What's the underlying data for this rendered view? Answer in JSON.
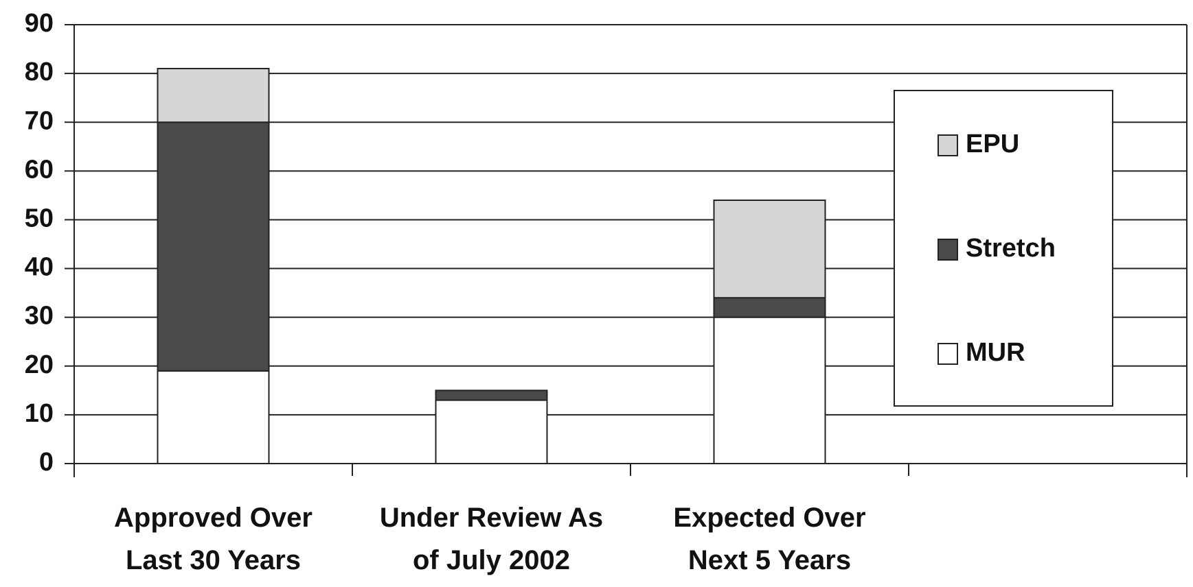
{
  "chart_data": {
    "type": "stacked_bar",
    "categories": [
      "Approved Over Last 30 Years",
      "Under Review As of July 2002",
      "Expected Over Next 5 Years",
      null
    ],
    "series": [
      {
        "name": "MUR",
        "color": "#ffffff",
        "values": [
          19,
          13,
          30,
          null
        ]
      },
      {
        "name": "Stretch",
        "color": "#4a4a4a",
        "values": [
          51,
          2,
          4,
          null
        ]
      },
      {
        "name": "EPU",
        "color": "#d6d6d6",
        "values": [
          11,
          0,
          20,
          null
        ]
      }
    ],
    "ylim": [
      0,
      90
    ],
    "yticks": [
      0,
      10,
      20,
      30,
      40,
      50,
      60,
      70,
      80,
      90
    ],
    "grid": true,
    "legend": "right"
  }
}
